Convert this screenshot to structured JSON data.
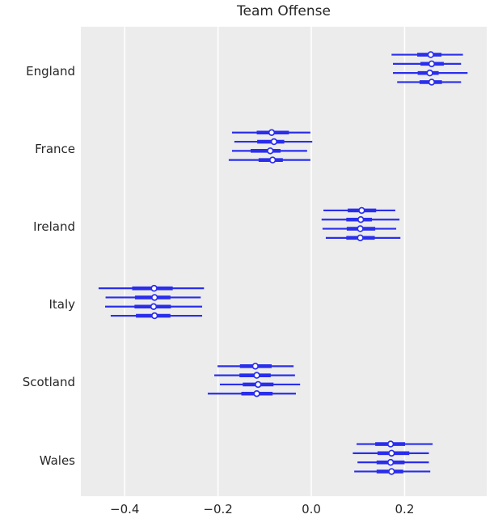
{
  "page": {
    "title": "Team Offense"
  },
  "chart_data": {
    "type": "forest",
    "title": "Team Offense",
    "xlabel": "",
    "ylabel": "",
    "legend": "none",
    "grid": "vertical-only",
    "xlim": [
      -0.494,
      0.376
    ],
    "xticks": {
      "values": [
        -0.4,
        -0.2,
        0.0,
        0.2
      ],
      "labels": [
        "−0.4",
        "−0.2",
        "0.0",
        "0.2"
      ]
    },
    "groups": [
      {
        "label": "England",
        "chains": [
          {
            "interval": [
              0.172,
              0.325
            ],
            "band": [
              0.227,
              0.279
            ],
            "median": 0.256
          },
          {
            "interval": [
              0.175,
              0.321
            ],
            "band": [
              0.234,
              0.284
            ],
            "median": 0.258
          },
          {
            "interval": [
              0.175,
              0.335
            ],
            "band": [
              0.228,
              0.273
            ],
            "median": 0.254
          },
          {
            "interval": [
              0.184,
              0.321
            ],
            "band": [
              0.232,
              0.28
            ],
            "median": 0.258
          }
        ]
      },
      {
        "label": "France",
        "chains": [
          {
            "interval": [
              -0.17,
              -0.002
            ],
            "band": [
              -0.117,
              -0.048
            ],
            "median": -0.085
          },
          {
            "interval": [
              -0.165,
              0.002
            ],
            "band": [
              -0.116,
              -0.058
            ],
            "median": -0.08
          },
          {
            "interval": [
              -0.17,
              -0.009
            ],
            "band": [
              -0.13,
              -0.066
            ],
            "median": -0.088
          },
          {
            "interval": [
              -0.177,
              -0.002
            ],
            "band": [
              -0.113,
              -0.061
            ],
            "median": -0.083
          }
        ]
      },
      {
        "label": "Ireland",
        "chains": [
          {
            "interval": [
              0.026,
              0.18
            ],
            "band": [
              0.078,
              0.139
            ],
            "median": 0.108
          },
          {
            "interval": [
              0.022,
              0.189
            ],
            "band": [
              0.075,
              0.13
            ],
            "median": 0.106
          },
          {
            "interval": [
              0.024,
              0.182
            ],
            "band": [
              0.076,
              0.137
            ],
            "median": 0.105
          },
          {
            "interval": [
              0.031,
              0.191
            ],
            "band": [
              0.075,
              0.136
            ],
            "median": 0.105
          }
        ]
      },
      {
        "label": "Italy",
        "chains": [
          {
            "interval": [
              -0.456,
              -0.23
            ],
            "band": [
              -0.384,
              -0.297
            ],
            "median": -0.337
          },
          {
            "interval": [
              -0.441,
              -0.237
            ],
            "band": [
              -0.378,
              -0.302
            ],
            "median": -0.336
          },
          {
            "interval": [
              -0.442,
              -0.234
            ],
            "band": [
              -0.379,
              -0.301
            ],
            "median": -0.338
          },
          {
            "interval": [
              -0.43,
              -0.234
            ],
            "band": [
              -0.376,
              -0.302
            ],
            "median": -0.336
          }
        ]
      },
      {
        "label": "Scotland",
        "chains": [
          {
            "interval": [
              -0.201,
              -0.038
            ],
            "band": [
              -0.153,
              -0.085
            ],
            "median": -0.12
          },
          {
            "interval": [
              -0.208,
              -0.035
            ],
            "band": [
              -0.154,
              -0.087
            ],
            "median": -0.117
          },
          {
            "interval": [
              -0.196,
              -0.024
            ],
            "band": [
              -0.147,
              -0.081
            ],
            "median": -0.114
          },
          {
            "interval": [
              -0.222,
              -0.033
            ],
            "band": [
              -0.15,
              -0.083
            ],
            "median": -0.117
          }
        ]
      },
      {
        "label": "Wales",
        "chains": [
          {
            "interval": [
              0.097,
              0.26
            ],
            "band": [
              0.137,
              0.201
            ],
            "median": 0.17
          },
          {
            "interval": [
              0.089,
              0.252
            ],
            "band": [
              0.142,
              0.21
            ],
            "median": 0.172
          },
          {
            "interval": [
              0.099,
              0.252
            ],
            "band": [
              0.14,
              0.2
            ],
            "median": 0.17
          },
          {
            "interval": [
              0.092,
              0.255
            ],
            "band": [
              0.14,
              0.197
            ],
            "median": 0.172
          }
        ]
      }
    ],
    "style": {
      "line_color": "#2a2eec",
      "marker_face": "#ffffff",
      "axes_background": "#ececec",
      "grid_color": "#ffffff",
      "text_color": "#262626",
      "figure_background": "#ffffff"
    }
  }
}
